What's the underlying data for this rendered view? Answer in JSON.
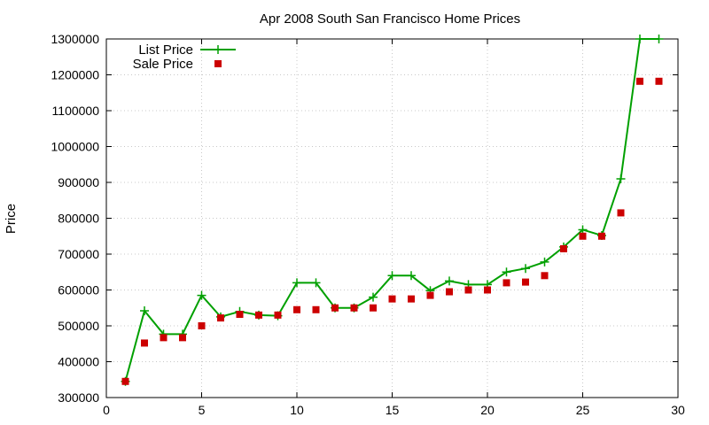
{
  "chart_data": {
    "type": "line",
    "title": "Apr 2008 South San Francisco Home Prices",
    "xlabel": "",
    "ylabel": "Price",
    "xlim": [
      0,
      30
    ],
    "ylim": [
      300000,
      1300000
    ],
    "x_ticks": [
      0,
      5,
      10,
      15,
      20,
      25,
      30
    ],
    "y_ticks": [
      300000,
      400000,
      500000,
      600000,
      700000,
      800000,
      900000,
      1000000,
      1100000,
      1200000,
      1300000
    ],
    "grid": true,
    "legend_position": "top-left",
    "series": [
      {
        "name": "List Price",
        "style": "line+plus",
        "color": "#00a000",
        "x": [
          1,
          2,
          3,
          4,
          5,
          6,
          7,
          8,
          9,
          10,
          11,
          12,
          13,
          14,
          15,
          16,
          17,
          18,
          19,
          20,
          21,
          22,
          23,
          24,
          25,
          26,
          27,
          28,
          29
        ],
        "values": [
          345000,
          542000,
          477000,
          477000,
          585000,
          525000,
          540000,
          530000,
          528000,
          620000,
          620000,
          550000,
          550000,
          580000,
          640000,
          640000,
          598000,
          625000,
          615000,
          615000,
          650000,
          660000,
          678000,
          720000,
          768000,
          752000,
          910000,
          1300000,
          1300000
        ]
      },
      {
        "name": "Sale Price",
        "style": "square-marker",
        "color": "#cc0000",
        "x": [
          1,
          2,
          3,
          4,
          5,
          6,
          7,
          8,
          9,
          10,
          11,
          12,
          13,
          14,
          15,
          16,
          17,
          18,
          19,
          20,
          21,
          22,
          23,
          24,
          25,
          26,
          27,
          28,
          29
        ],
        "values": [
          345000,
          452000,
          467000,
          467000,
          500000,
          522000,
          532000,
          530000,
          530000,
          545000,
          545000,
          550000,
          550000,
          550000,
          575000,
          575000,
          585000,
          595000,
          600000,
          600000,
          620000,
          622000,
          640000,
          715000,
          750000,
          750000,
          815000,
          1182000,
          1182000
        ]
      }
    ]
  }
}
